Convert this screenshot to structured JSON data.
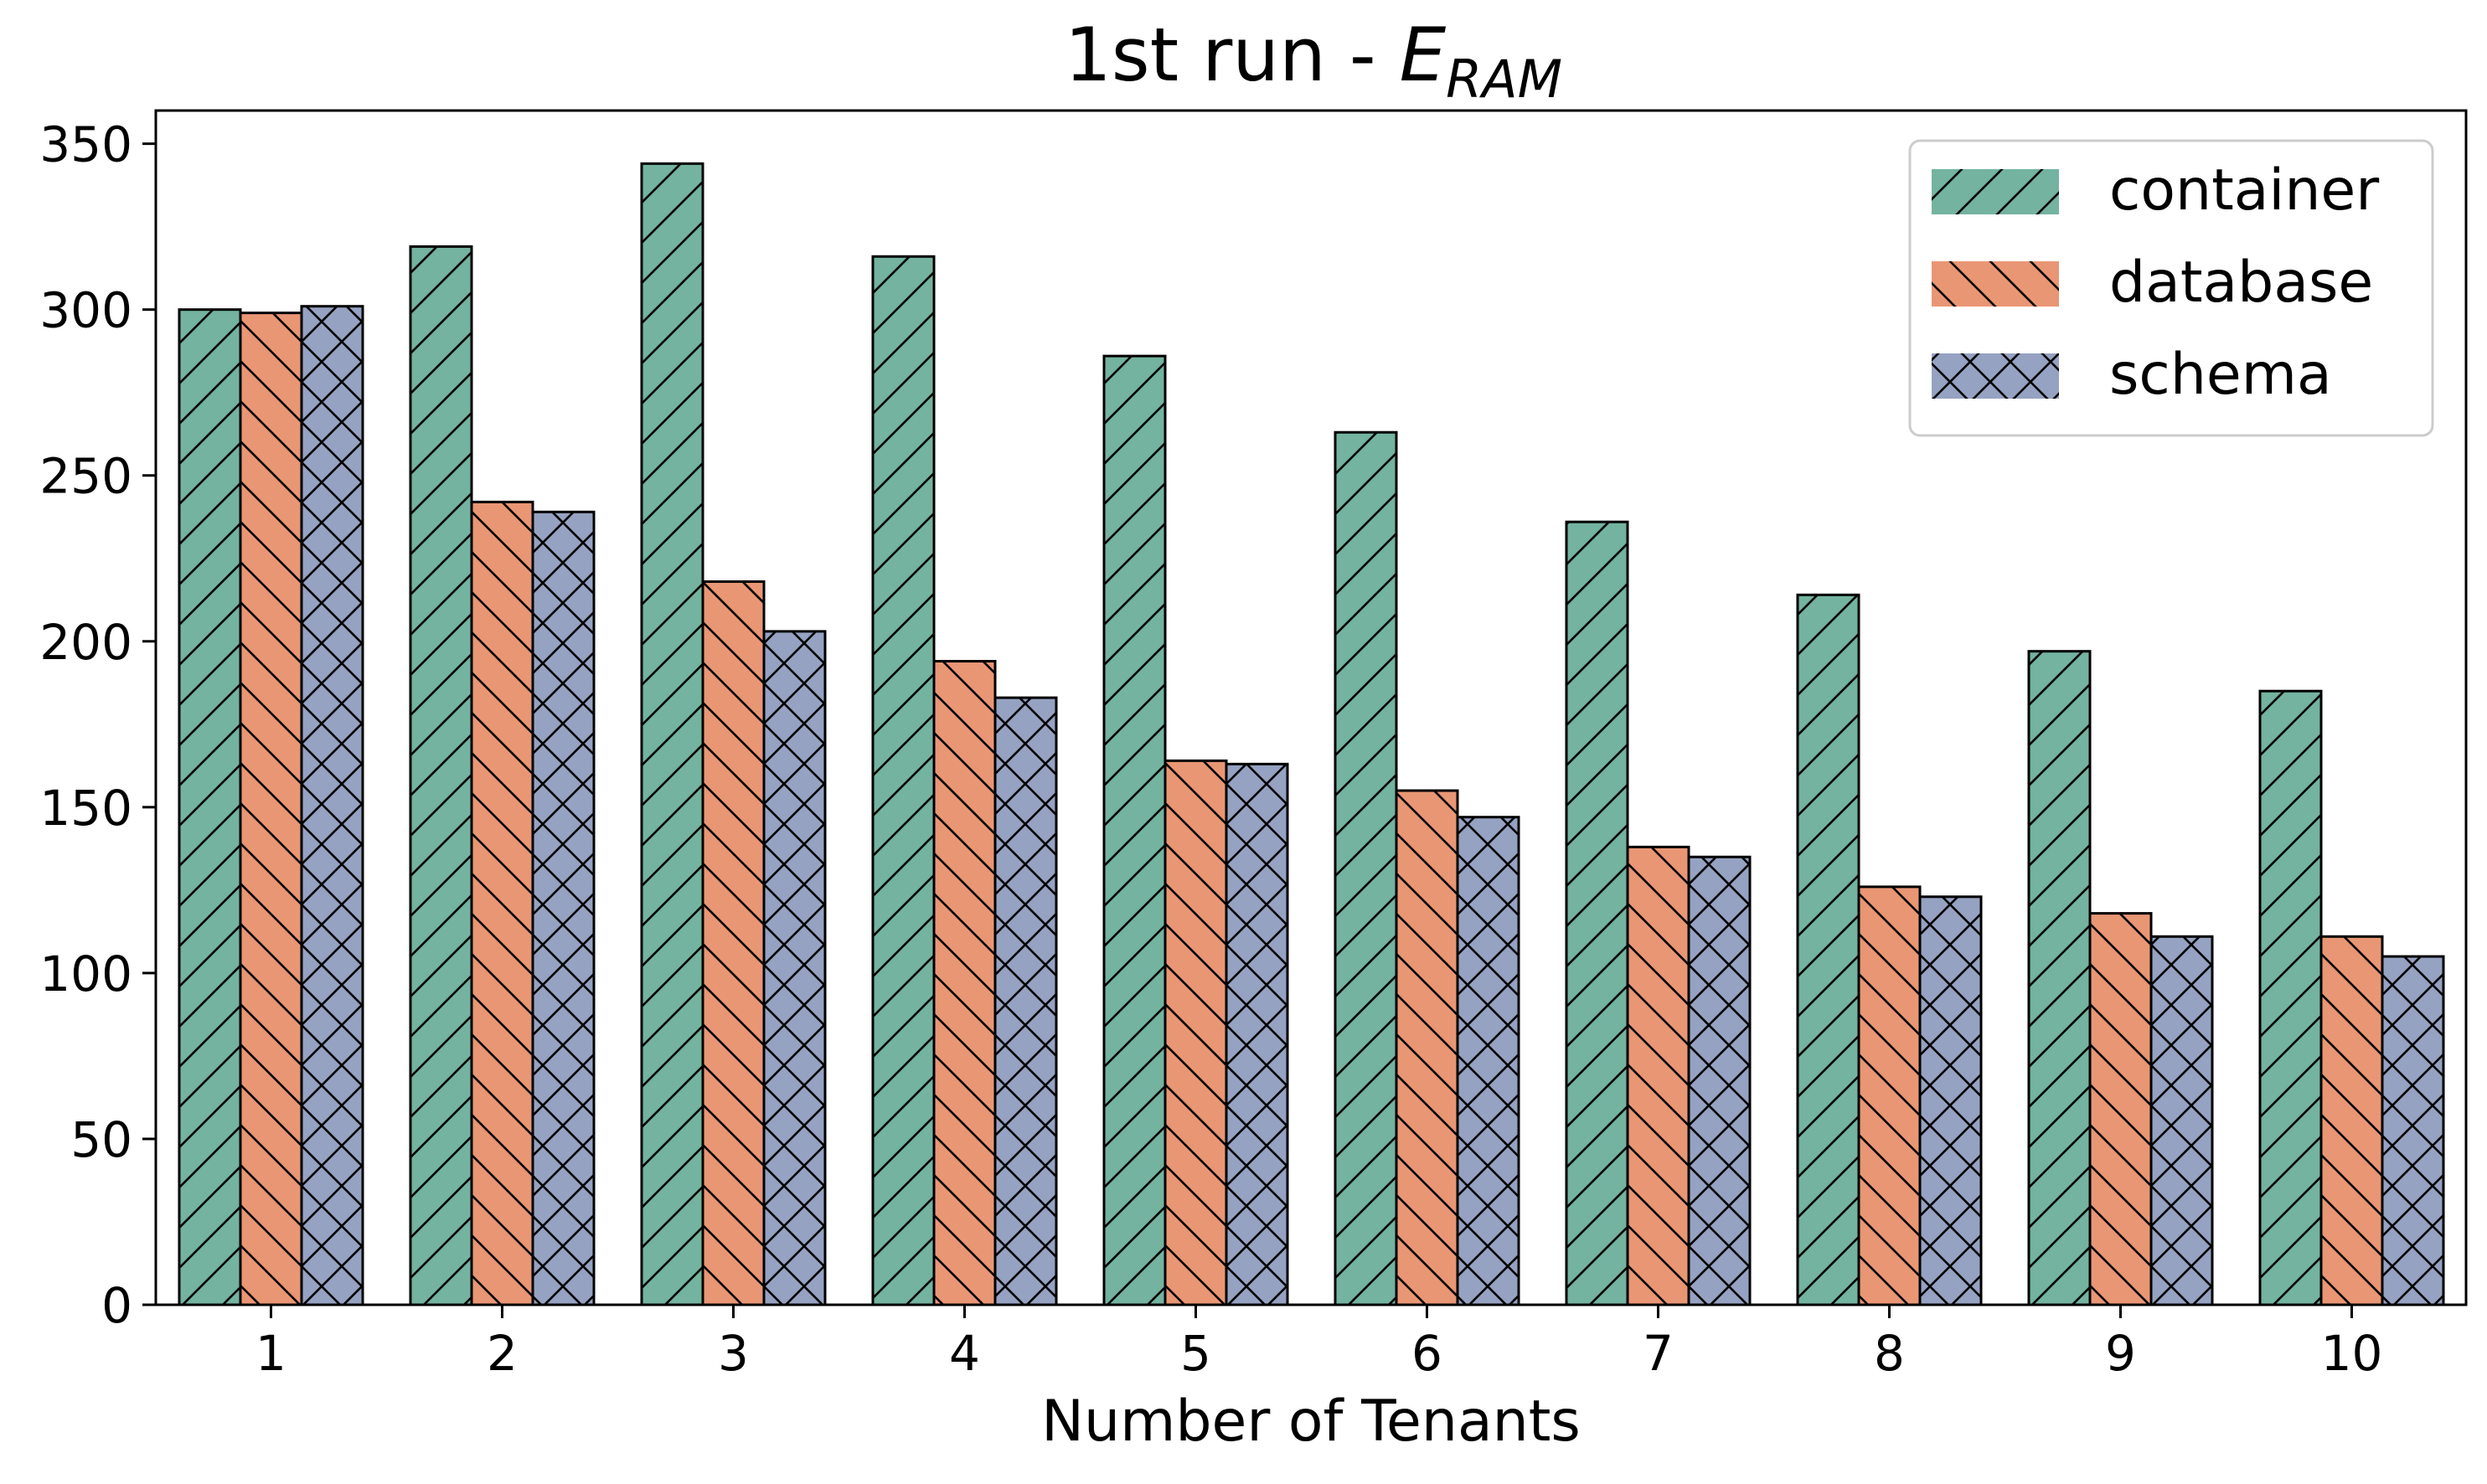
{
  "chart_data": {
    "type": "bar",
    "title": "1st run - ",
    "title_math": "E",
    "title_math_subscript": "RAM",
    "xlabel": "Number of Tenants",
    "ylabel": "",
    "categories": [
      "1",
      "2",
      "3",
      "4",
      "5",
      "6",
      "7",
      "8",
      "9",
      "10"
    ],
    "yticks": [
      0,
      50,
      100,
      150,
      200,
      250,
      300,
      350
    ],
    "ylim": [
      0,
      360
    ],
    "grid": false,
    "legend_position": "top-right",
    "series": [
      {
        "name": "container",
        "color": "#73b39f",
        "hatch": "forward-diagonal",
        "values": [
          300,
          319,
          344,
          316,
          286,
          263,
          236,
          214,
          197,
          185
        ]
      },
      {
        "name": "database",
        "color": "#e99674",
        "hatch": "back-diagonal",
        "values": [
          299,
          242,
          218,
          194,
          164,
          155,
          138,
          126,
          118,
          111
        ]
      },
      {
        "name": "schema",
        "color": "#96a2c2",
        "hatch": "cross",
        "values": [
          301,
          239,
          203,
          183,
          163,
          147,
          135,
          123,
          111,
          105
        ]
      }
    ]
  }
}
